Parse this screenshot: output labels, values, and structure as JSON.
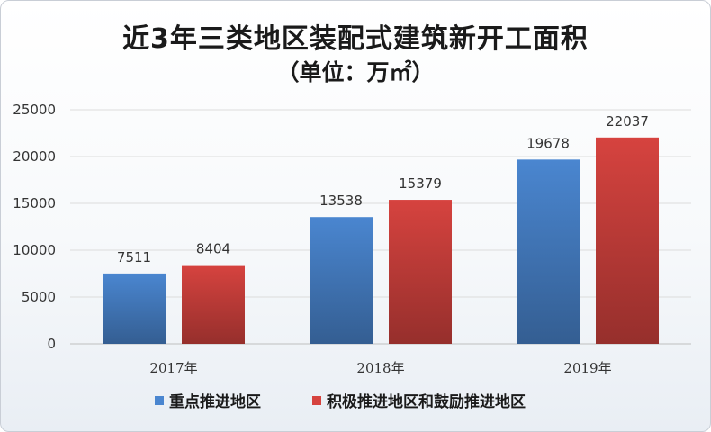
{
  "chart_data": {
    "type": "bar",
    "title": "近3年三类地区装配式建筑新开工面积",
    "subtitle": "（单位：万㎡）",
    "categories": [
      "2017年",
      "2018年",
      "2019年"
    ],
    "series": [
      {
        "name": "重点推进地区",
        "values": [
          7511,
          13538,
          19678
        ],
        "color": "#4a86d0"
      },
      {
        "name": "积极推进地区和鼓励推进地区",
        "values": [
          8404,
          15379,
          22037
        ],
        "color": "#d6433f"
      }
    ],
    "ylim": [
      0,
      25000
    ],
    "yticks": [
      0,
      5000,
      10000,
      15000,
      20000,
      25000
    ],
    "grid": true,
    "legend": "bottom",
    "data_labels": true
  }
}
